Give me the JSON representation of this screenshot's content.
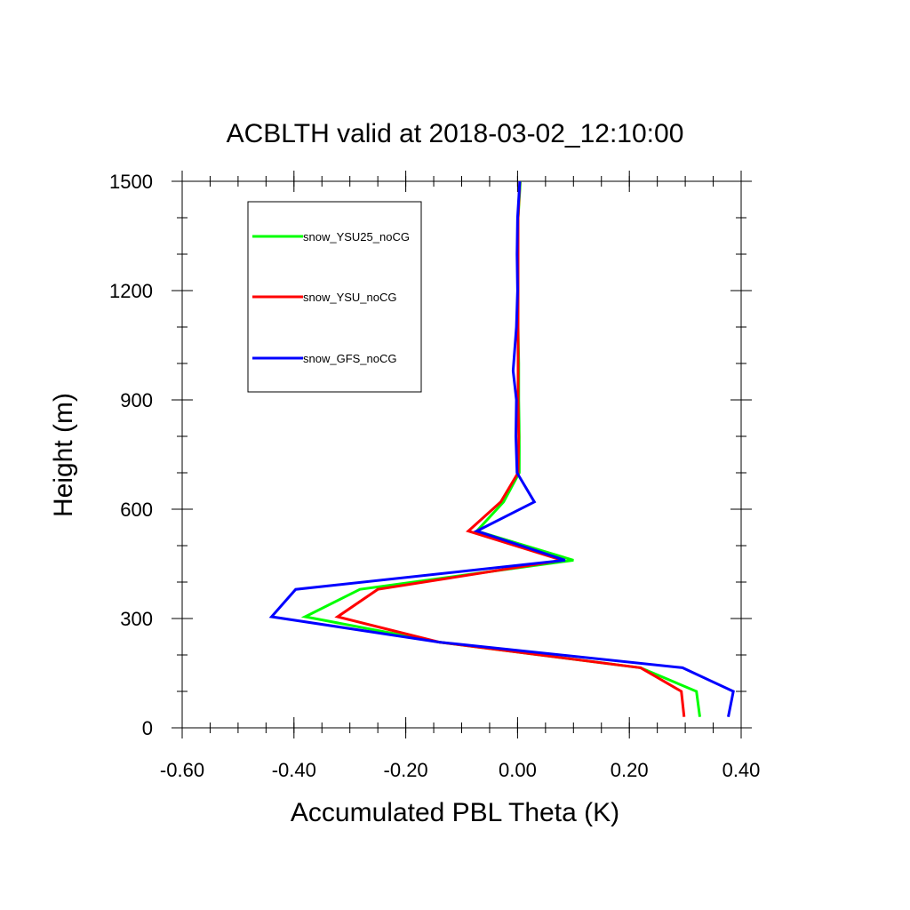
{
  "chart_data": {
    "type": "line",
    "title": "ACBLTH valid at 2018-03-02_12:10:00",
    "xlabel": "Accumulated PBL Theta (K)",
    "ylabel": "Height (m)",
    "xlim": [
      -0.6,
      0.4
    ],
    "ylim": [
      0,
      1500
    ],
    "x_ticks": [
      -0.6,
      -0.4,
      -0.2,
      0.0,
      0.2,
      0.4
    ],
    "x_tick_labels": [
      "-0.60",
      "-0.40",
      "-0.20",
      "0.00",
      "0.20",
      "0.40"
    ],
    "y_ticks": [
      0,
      300,
      600,
      900,
      1200,
      1500
    ],
    "y_tick_labels": [
      "0",
      "300",
      "600",
      "900",
      "1200",
      "1500"
    ],
    "grid": false,
    "legend_position": "top-left",
    "series": [
      {
        "name": "snow_YSU25_noCG",
        "color": "#00ff00",
        "points": [
          [
            0.326,
            30
          ],
          [
            0.32,
            100
          ],
          [
            0.22,
            165
          ],
          [
            -0.14,
            235
          ],
          [
            -0.38,
            305
          ],
          [
            -0.282,
            380
          ],
          [
            0.1,
            460
          ],
          [
            -0.073,
            540
          ],
          [
            -0.025,
            620
          ],
          [
            0.003,
            700
          ],
          [
            0.003,
            800
          ],
          [
            0.002,
            900
          ],
          [
            0.002,
            1000
          ],
          [
            0.001,
            1100
          ],
          [
            0.001,
            1200
          ],
          [
            0.001,
            1300
          ],
          [
            0.001,
            1400
          ],
          [
            0.005,
            1500
          ]
        ]
      },
      {
        "name": "snow_YSU_noCG",
        "color": "#ff0000",
        "points": [
          [
            0.298,
            30
          ],
          [
            0.293,
            100
          ],
          [
            0.22,
            165
          ],
          [
            -0.14,
            235
          ],
          [
            -0.322,
            305
          ],
          [
            -0.25,
            380
          ],
          [
            0.08,
            460
          ],
          [
            -0.088,
            540
          ],
          [
            -0.03,
            620
          ],
          [
            0.001,
            700
          ],
          [
            0.002,
            800
          ],
          [
            0.001,
            900
          ],
          [
            0.001,
            1000
          ],
          [
            0.001,
            1100
          ],
          [
            0.001,
            1200
          ],
          [
            0.001,
            1300
          ],
          [
            0.001,
            1400
          ],
          [
            0.004,
            1500
          ]
        ]
      },
      {
        "name": "snow_GFS_noCG",
        "color": "#0000ff",
        "points": [
          [
            0.377,
            30
          ],
          [
            0.386,
            100
          ],
          [
            0.295,
            165
          ],
          [
            -0.14,
            235
          ],
          [
            -0.44,
            305
          ],
          [
            -0.397,
            380
          ],
          [
            0.085,
            460
          ],
          [
            -0.073,
            540
          ],
          [
            0.03,
            620
          ],
          [
            -0.001,
            700
          ],
          [
            -0.003,
            800
          ],
          [
            -0.002,
            900
          ],
          [
            -0.008,
            980
          ],
          [
            -0.002,
            1100
          ],
          [
            0.0,
            1200
          ],
          [
            -0.001,
            1300
          ],
          [
            0.0,
            1400
          ],
          [
            0.004,
            1500
          ]
        ]
      }
    ]
  }
}
